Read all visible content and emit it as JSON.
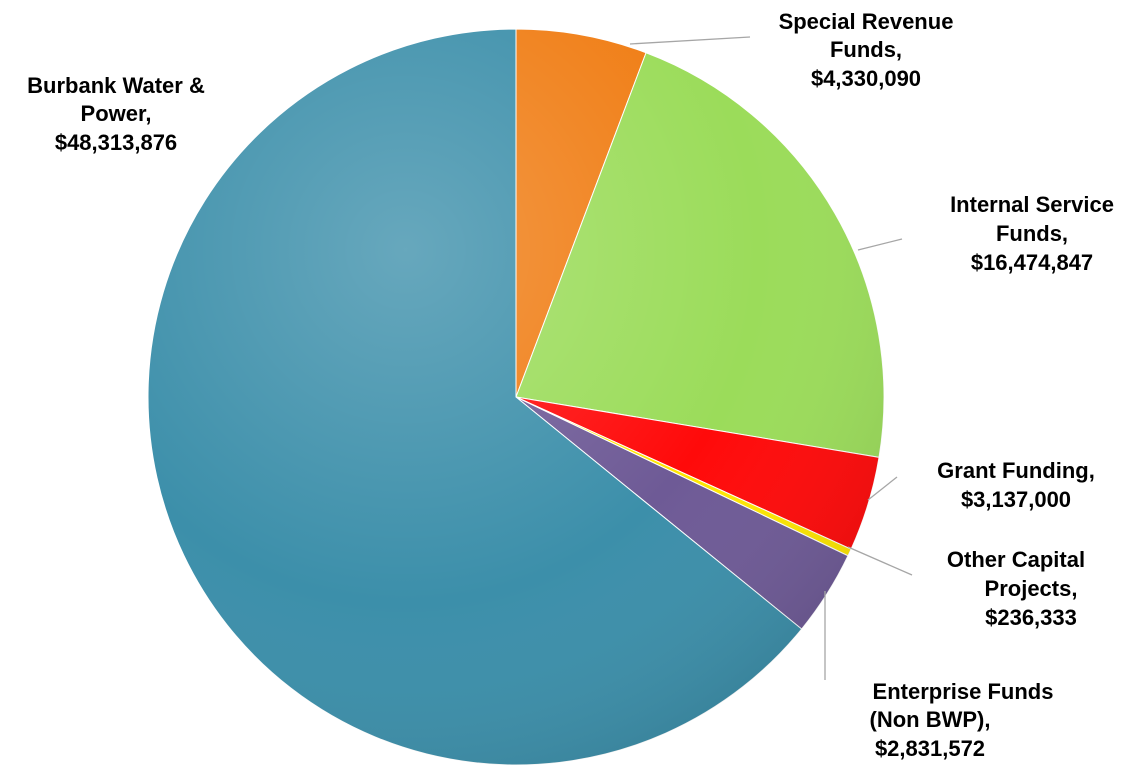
{
  "chart_data": {
    "type": "pie",
    "start_angle_deg": 0,
    "direction": "clockwise",
    "legend": "none",
    "slices": [
      {
        "name": "Special Revenue Funds",
        "value": 4330090,
        "label_lines": [
          "Special Revenue",
          "Funds,",
          "$4,330,090"
        ],
        "color": "#F07D14"
      },
      {
        "name": "Internal Service Funds",
        "value": 16474847,
        "label_lines": [
          "Internal Service",
          "Funds,",
          "$16,474,847"
        ],
        "color": "#9BDC5A"
      },
      {
        "name": "Grant Funding",
        "value": 3137000,
        "label_lines": [
          "Grant Funding,",
          "$3,137,000"
        ],
        "color": "#FF0A0A"
      },
      {
        "name": "Other Capital Projects",
        "value": 236333,
        "label_lines": [
          "Other Capital",
          "Projects,",
          "$236,333"
        ],
        "color": "#FFE600"
      },
      {
        "name": "Enterprise Funds (Non BWP)",
        "value": 2831572,
        "label_lines": [
          "Enterprise Funds",
          "(Non BWP),",
          "$2,831,572"
        ],
        "color": "#6E5A96"
      },
      {
        "name": "Burbank Water & Power",
        "value": 48313876,
        "label_lines": [
          "Burbank Water &",
          "Power,",
          "$48,313,876"
        ],
        "color": "#3C8FAA"
      }
    ]
  }
}
